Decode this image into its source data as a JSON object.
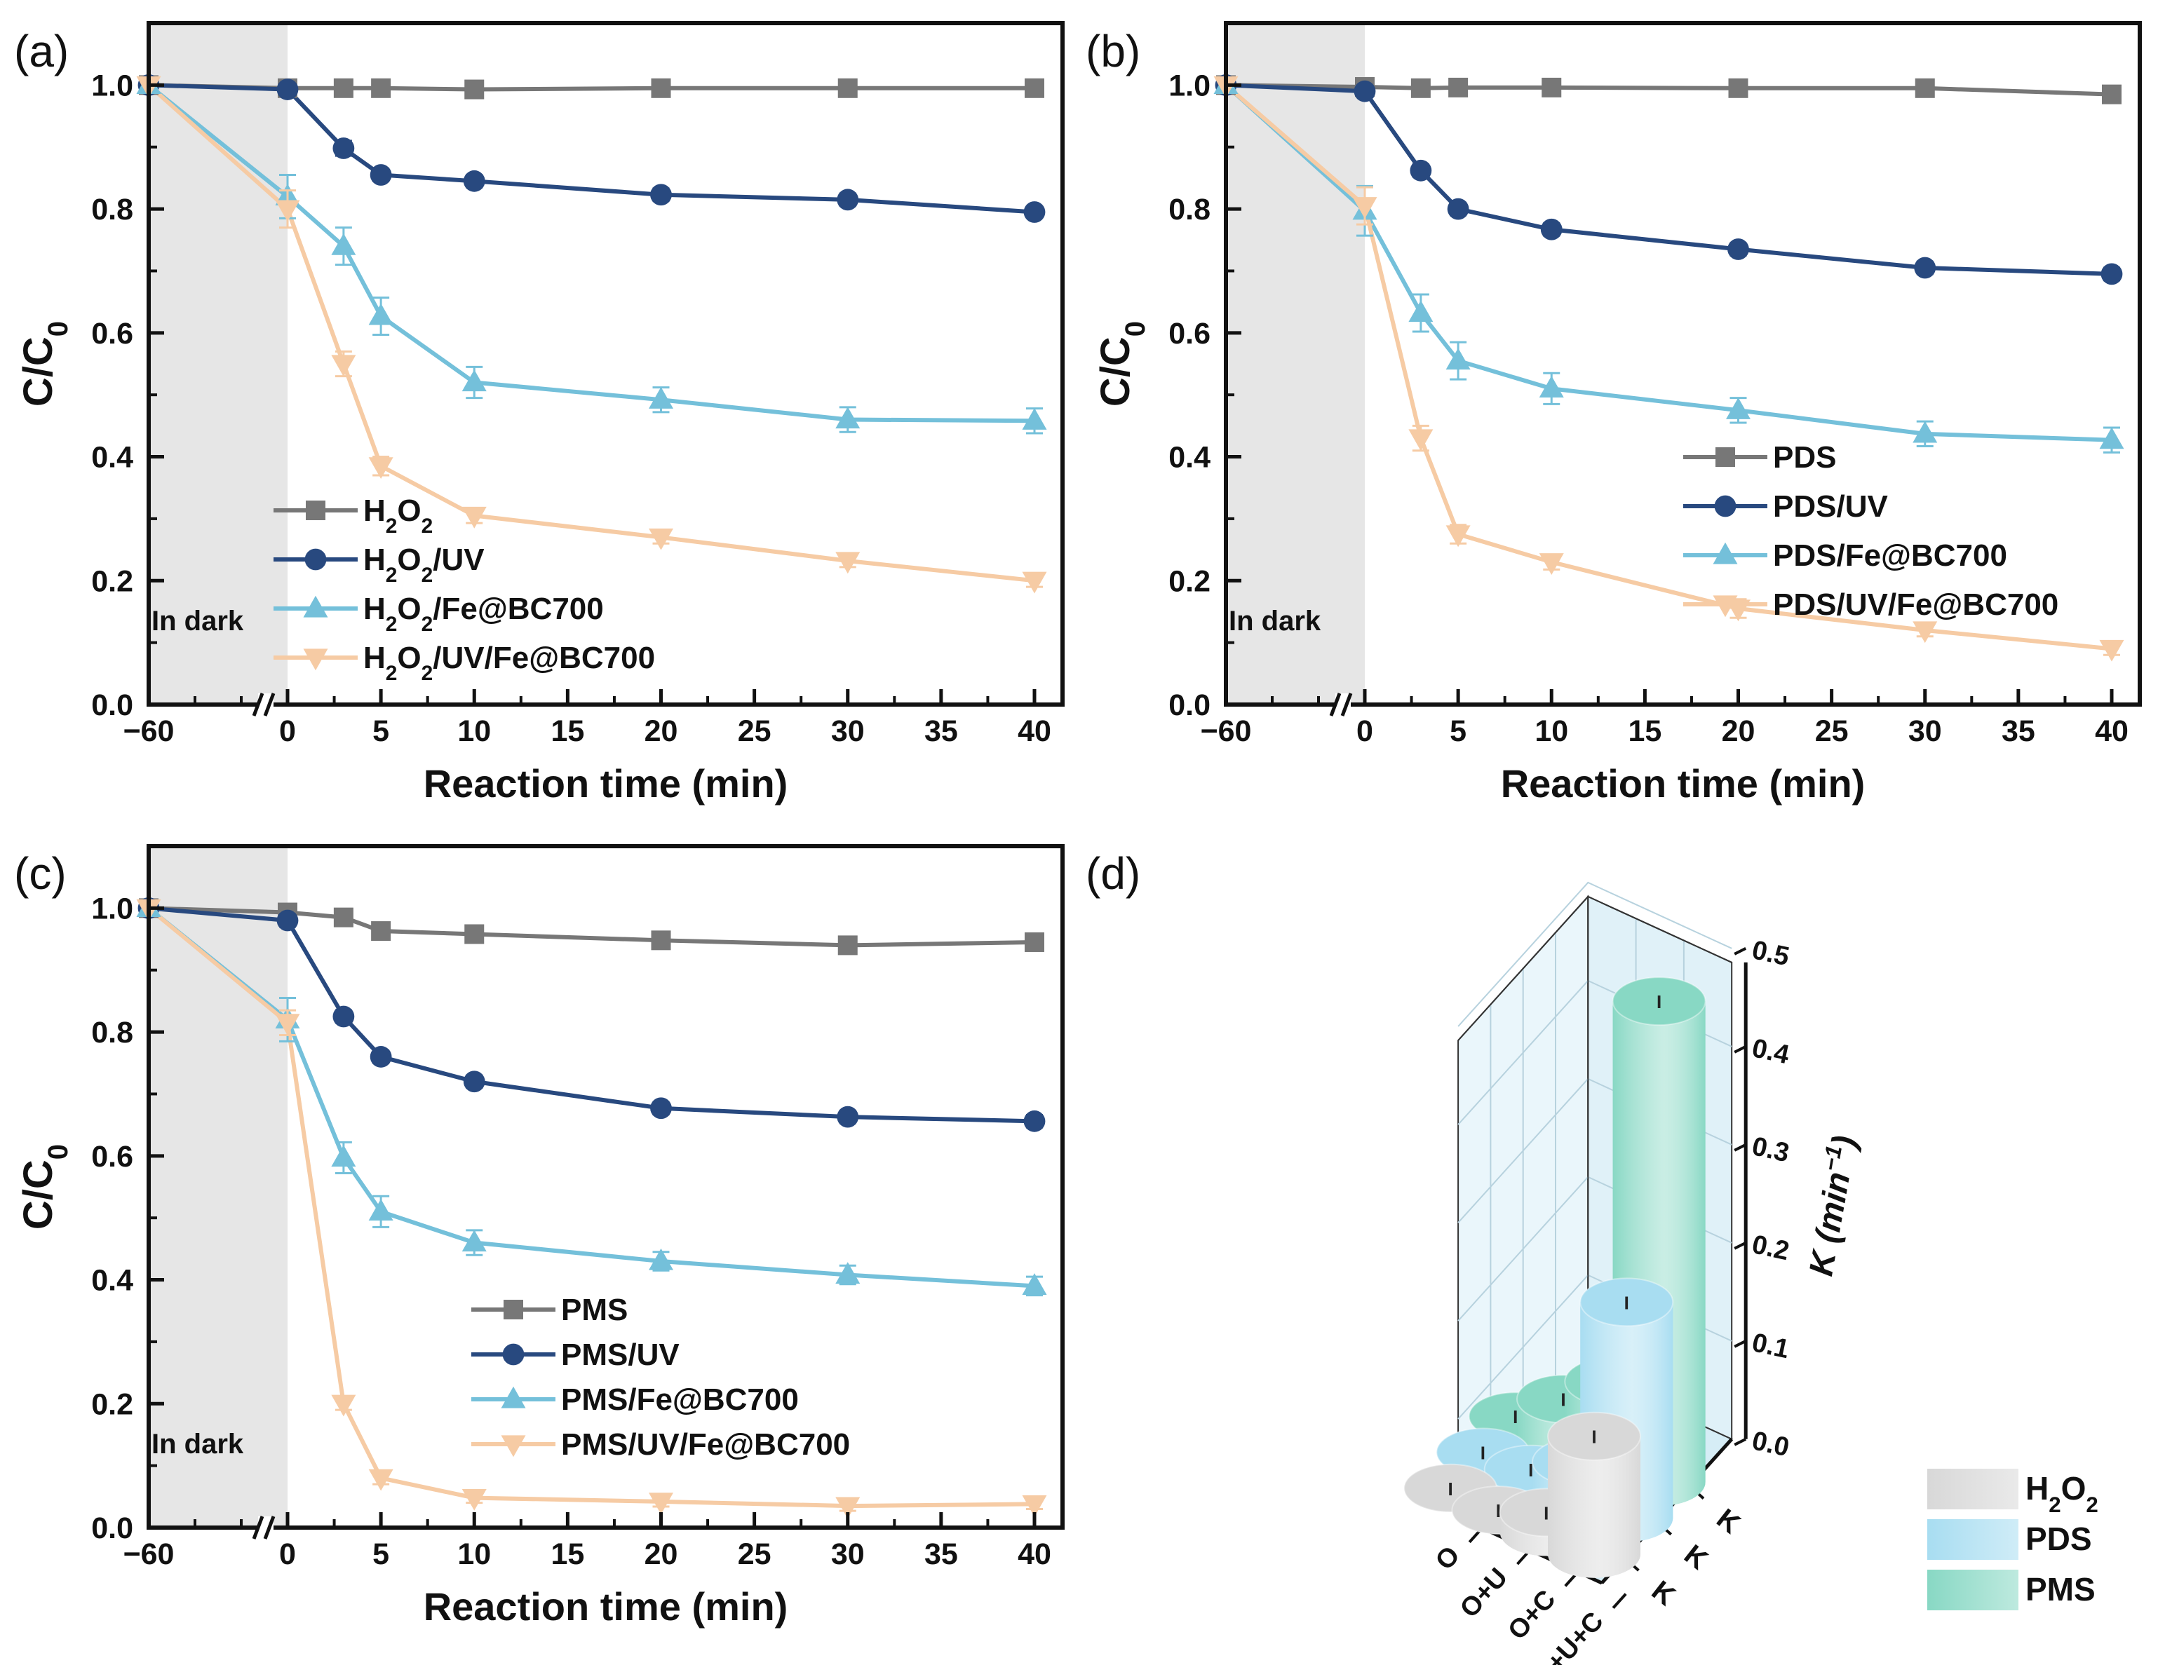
{
  "colors": {
    "gray": "#777777",
    "navy": "#28497F",
    "sky": "#74C0DA",
    "peach": "#F6CBA4",
    "dark_shade": "#E6E6E6",
    "h2o2_bar": "#D8D8D8",
    "pds_bar": "#A8DDF1",
    "pms_bar": "#88D8C4"
  },
  "chart_data": [
    {
      "panel": "(a)",
      "type": "line",
      "xlabel": "Reaction time (min)",
      "ylabel": "C/C",
      "ylabel_sub": "0",
      "ylim": [
        0,
        1.1
      ],
      "yticks": [
        "0.0",
        "0.2",
        "0.4",
        "0.6",
        "0.8",
        "1.0"
      ],
      "xticks": [
        "−60",
        "0",
        "5",
        "10",
        "15",
        "20",
        "25",
        "30",
        "35",
        "40"
      ],
      "dark_label": "In dark",
      "x": [
        -60,
        0,
        3,
        5,
        10,
        20,
        30,
        40
      ],
      "series": [
        {
          "name": "H2O2",
          "label_parts": [
            [
              "H",
              ""
            ],
            [
              "2",
              "sub"
            ],
            [
              "O",
              ""
            ],
            [
              "2",
              "sub"
            ]
          ],
          "marker": "square",
          "color": "gray",
          "values": [
            1.0,
            0.995,
            0.995,
            0.995,
            0.993,
            0.995,
            0.995,
            0.995
          ],
          "err": [
            0,
            0.01,
            0.01,
            0.01,
            0.012,
            0.01,
            0.01,
            0.01
          ]
        },
        {
          "name": "H2O2/UV",
          "label_parts": [
            [
              "H",
              ""
            ],
            [
              "2",
              "sub"
            ],
            [
              "O",
              ""
            ],
            [
              "2",
              "sub"
            ],
            [
              "/UV",
              ""
            ]
          ],
          "marker": "circle",
          "color": "navy",
          "values": [
            1.0,
            0.993,
            0.898,
            0.855,
            0.845,
            0.823,
            0.815,
            0.795
          ],
          "err": [
            0,
            0.008,
            0.012,
            0.01,
            0.01,
            0.01,
            0.01,
            0.008
          ]
        },
        {
          "name": "H2O2/Fe@BC700",
          "label_parts": [
            [
              "H",
              ""
            ],
            [
              "2",
              "sub"
            ],
            [
              "O",
              ""
            ],
            [
              "2",
              "sub"
            ],
            [
              "/Fe@BC700",
              ""
            ]
          ],
          "marker": "up",
          "color": "sky",
          "values": [
            1.0,
            0.82,
            0.74,
            0.627,
            0.52,
            0.492,
            0.46,
            0.458
          ],
          "err": [
            0,
            0.035,
            0.03,
            0.03,
            0.025,
            0.02,
            0.02,
            0.02
          ]
        },
        {
          "name": "H2O2/UV/Fe@BC700",
          "label_parts": [
            [
              "H",
              ""
            ],
            [
              "2",
              "sub"
            ],
            [
              "O",
              ""
            ],
            [
              "2",
              "sub"
            ],
            [
              "/UV/Fe@BC700",
              ""
            ]
          ],
          "marker": "down",
          "color": "peach",
          "values": [
            1.0,
            0.8,
            0.55,
            0.385,
            0.305,
            0.27,
            0.232,
            0.2
          ],
          "err": [
            0,
            0.03,
            0.02,
            0.015,
            0.012,
            0.01,
            0.01,
            0.01
          ]
        }
      ]
    },
    {
      "panel": "(b)",
      "type": "line",
      "xlabel": "Reaction time (min)",
      "ylabel": "C/C",
      "ylabel_sub": "0",
      "ylim": [
        0,
        1.1
      ],
      "yticks": [
        "0.0",
        "0.2",
        "0.4",
        "0.6",
        "0.8",
        "1.0"
      ],
      "xticks": [
        "−60",
        "0",
        "5",
        "10",
        "15",
        "20",
        "25",
        "30",
        "35",
        "40"
      ],
      "dark_label": "In dark",
      "x": [
        -60,
        0,
        3,
        5,
        10,
        20,
        30,
        40
      ],
      "series": [
        {
          "name": "PDS",
          "label_parts": [
            [
              "PDS",
              ""
            ]
          ],
          "marker": "square",
          "color": "gray",
          "values": [
            1.0,
            0.997,
            0.995,
            0.996,
            0.996,
            0.995,
            0.995,
            0.985
          ],
          "err": [
            0,
            0.008,
            0.008,
            0.008,
            0.008,
            0.008,
            0.008,
            0.008
          ]
        },
        {
          "name": "PDS/UV",
          "label_parts": [
            [
              "PDS/UV",
              ""
            ]
          ],
          "marker": "circle",
          "color": "navy",
          "values": [
            1.0,
            0.99,
            0.862,
            0.8,
            0.767,
            0.735,
            0.705,
            0.695
          ],
          "err": [
            0,
            0.008,
            0.01,
            0.01,
            0.01,
            0.01,
            0.01,
            0.01
          ]
        },
        {
          "name": "PDS/Fe@BC700",
          "label_parts": [
            [
              "PDS/Fe@BC700",
              ""
            ]
          ],
          "marker": "up",
          "color": "sky",
          "values": [
            1.0,
            0.797,
            0.632,
            0.555,
            0.51,
            0.475,
            0.437,
            0.427
          ],
          "err": [
            0,
            0.04,
            0.03,
            0.03,
            0.025,
            0.02,
            0.02,
            0.02
          ]
        },
        {
          "name": "PDS/UV/Fe@BC700",
          "label_parts": [
            [
              "PDS/UV/Fe@BC700",
              ""
            ]
          ],
          "marker": "down",
          "color": "peach",
          "values": [
            1.0,
            0.805,
            0.43,
            0.275,
            0.23,
            0.155,
            0.12,
            0.09
          ],
          "err": [
            0,
            0.03,
            0.02,
            0.015,
            0.012,
            0.015,
            0.01,
            0.01
          ]
        }
      ]
    },
    {
      "panel": "(c)",
      "type": "line",
      "xlabel": "Reaction time (min)",
      "ylabel": "C/C",
      "ylabel_sub": "0",
      "ylim": [
        0,
        1.1
      ],
      "yticks": [
        "0.0",
        "0.2",
        "0.4",
        "0.6",
        "0.8",
        "1.0"
      ],
      "xticks": [
        "−60",
        "0",
        "5",
        "10",
        "15",
        "20",
        "25",
        "30",
        "35",
        "40"
      ],
      "dark_label": "In dark",
      "x": [
        -60,
        0,
        3,
        5,
        10,
        20,
        30,
        40
      ],
      "series": [
        {
          "name": "PMS",
          "label_parts": [
            [
              "PMS",
              ""
            ]
          ],
          "marker": "square",
          "color": "gray",
          "values": [
            1.0,
            0.993,
            0.985,
            0.963,
            0.958,
            0.948,
            0.94,
            0.945
          ],
          "err": [
            0,
            0.01,
            0.01,
            0.012,
            0.012,
            0.012,
            0.012,
            0.012
          ]
        },
        {
          "name": "PMS/UV",
          "label_parts": [
            [
              "PMS/UV",
              ""
            ]
          ],
          "marker": "circle",
          "color": "navy",
          "values": [
            1.0,
            0.98,
            0.825,
            0.76,
            0.72,
            0.677,
            0.663,
            0.656
          ],
          "err": [
            0,
            0.01,
            0.01,
            0.01,
            0.01,
            0.01,
            0.01,
            0.01
          ]
        },
        {
          "name": "PMS/Fe@BC700",
          "label_parts": [
            [
              "PMS/Fe@BC700",
              ""
            ]
          ],
          "marker": "up",
          "color": "sky",
          "values": [
            1.0,
            0.82,
            0.597,
            0.51,
            0.46,
            0.43,
            0.408,
            0.39
          ],
          "err": [
            0,
            0.035,
            0.025,
            0.025,
            0.02,
            0.015,
            0.015,
            0.015
          ]
        },
        {
          "name": "PMS/UV/Fe@BC700",
          "label_parts": [
            [
              "PMS/UV/Fe@BC700",
              ""
            ]
          ],
          "marker": "down",
          "color": "peach",
          "values": [
            1.0,
            0.815,
            0.2,
            0.08,
            0.048,
            0.042,
            0.035,
            0.038
          ],
          "err": [
            0,
            0.02,
            0.01,
            0.01,
            0.008,
            0.008,
            0.008,
            0.008
          ]
        }
      ]
    },
    {
      "panel": "(d)",
      "type": "bar3d",
      "zlabel": "K (min",
      "zlabel_sup": "−1",
      "zlabel_close": ")",
      "zlim": [
        0,
        0.55
      ],
      "zticks": [
        "0.0",
        "0.1",
        "0.2",
        "0.3",
        "0.4",
        "0.5"
      ],
      "row_categories": [
        "O",
        "O+U",
        "O+C",
        "O+U+C"
      ],
      "col_tick_label": "K",
      "oxidants": [
        "H2O2",
        "PDS",
        "PMS"
      ],
      "legend_parts": [
        [
          [
            "H",
            ""
          ],
          [
            "2",
            "sub"
          ],
          [
            "O",
            ""
          ],
          [
            "2",
            "sub"
          ]
        ],
        [
          [
            "PDS",
            ""
          ]
        ],
        [
          [
            "PMS",
            ""
          ]
        ]
      ],
      "values": [
        [
          0.0,
          0.0,
          0.02,
          0.12
        ],
        [
          0.0,
          0.005,
          0.035,
          0.22
        ],
        [
          0.0,
          0.04,
          0.08,
          0.49
        ]
      ],
      "error_mark": "I"
    }
  ]
}
